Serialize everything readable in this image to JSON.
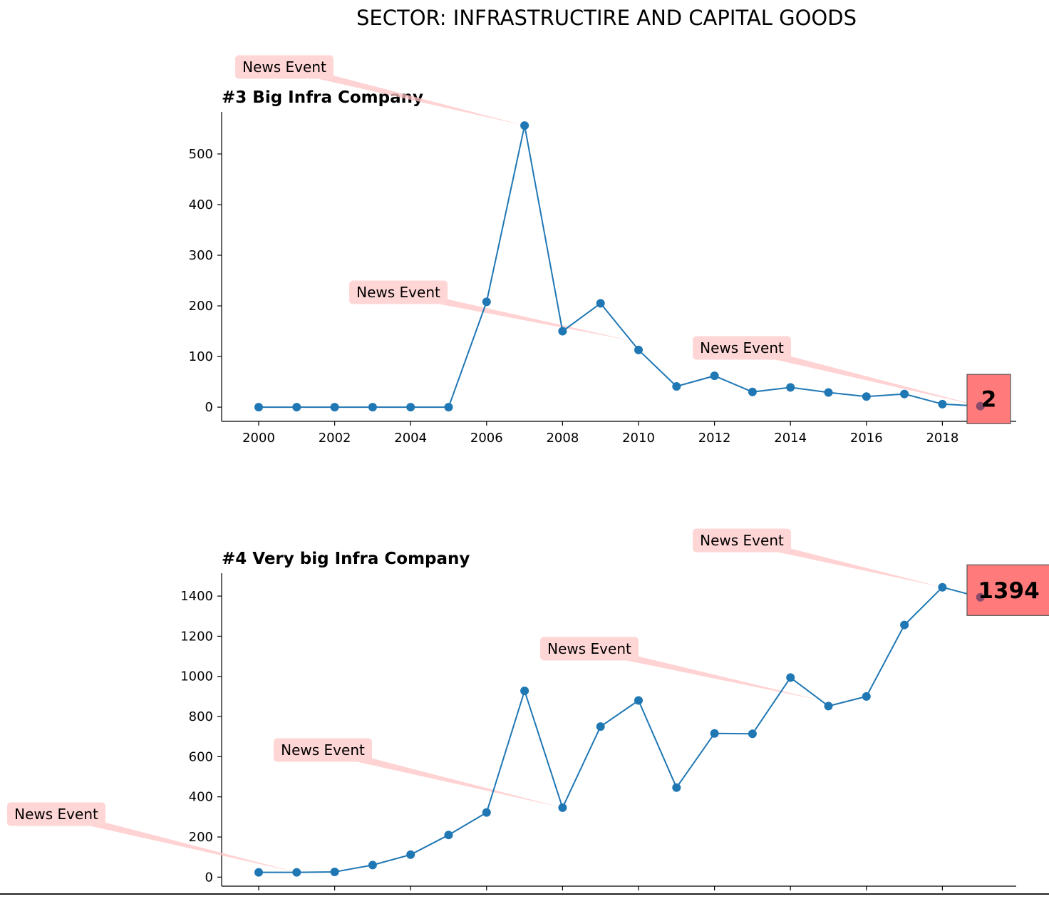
{
  "figure": {
    "title": "SECTOR: INFRASTRUCTIRE AND CAPITAL GOODS"
  },
  "colors": {
    "series": "#1f77b4",
    "annotation_box": "#ffd6d6",
    "annotation_arrow": "#ffc4c4",
    "last_value_box": "#ff7b7b",
    "axis": "#000000"
  },
  "chart_data": [
    {
      "type": "line",
      "title": "#3 Big Infra Company",
      "x": [
        2000,
        2001,
        2002,
        2003,
        2004,
        2005,
        2006,
        2007,
        2008,
        2009,
        2010,
        2011,
        2012,
        2013,
        2014,
        2015,
        2016,
        2017,
        2018,
        2019
      ],
      "values": [
        0,
        0,
        0,
        0,
        0,
        0,
        208,
        556,
        150,
        205,
        113,
        41,
        62,
        30,
        39,
        29,
        21,
        26,
        6,
        2
      ],
      "xlim": [
        1999.1,
        2020
      ],
      "ylim": [
        -28,
        583
      ],
      "xticks": [
        "2000",
        "2002",
        "2004",
        "2006",
        "2008",
        "2010",
        "2012",
        "2014",
        "2016",
        "2018"
      ],
      "yticks": [
        "0",
        "100",
        "200",
        "300",
        "400",
        "500"
      ],
      "grid": false,
      "last_value_label": "2",
      "annotations": [
        {
          "text": "News Event",
          "x": 2007
        },
        {
          "text": "News Event",
          "x": 2009.8
        },
        {
          "text": "News Event",
          "x": 2019
        }
      ]
    },
    {
      "type": "line",
      "title": "#4 Very big Infra Company",
      "x": [
        2000,
        2001,
        2002,
        2003,
        2004,
        2005,
        2006,
        2007,
        2008,
        2009,
        2010,
        2011,
        2012,
        2013,
        2014,
        2015,
        2016,
        2017,
        2018,
        2019
      ],
      "values": [
        24,
        24,
        26,
        60,
        112,
        210,
        322,
        928,
        346,
        750,
        880,
        446,
        716,
        714,
        994,
        852,
        900,
        1256,
        1444,
        1394
      ],
      "xlim": [
        1999.1,
        2020
      ],
      "ylim": [
        -45,
        1514
      ],
      "xticks": [],
      "yticks": [
        "0",
        "200",
        "400",
        "600",
        "800",
        "1000",
        "1200",
        "1400"
      ],
      "grid": false,
      "last_value_label": "1394",
      "annotations": [
        {
          "text": "News Event",
          "x": 2001
        },
        {
          "text": "News Event",
          "x": 2008
        },
        {
          "text": "News Event",
          "x": 2014.8
        },
        {
          "text": "News Event",
          "x": 2018
        }
      ]
    }
  ]
}
